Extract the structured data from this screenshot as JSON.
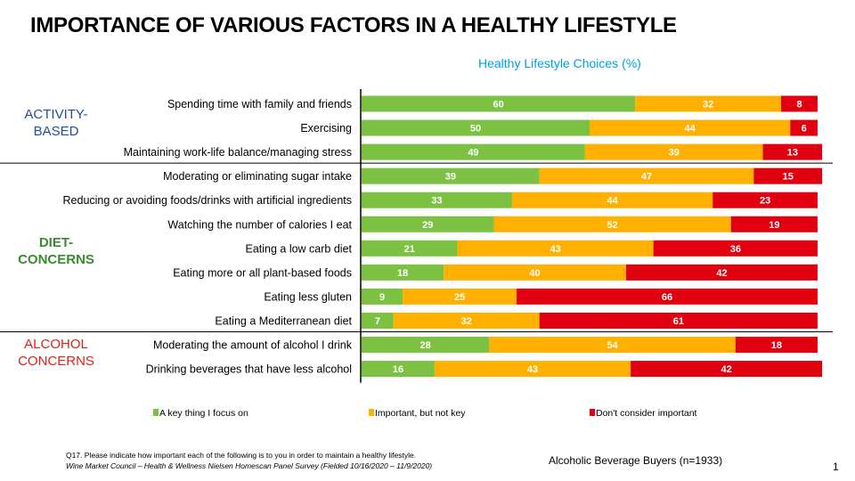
{
  "title": "IMPORTANCE OF VARIOUS FACTORS IN A HEALTHY LIFESTYLE",
  "groups": [
    {
      "label_line1": "ACTIVITY-",
      "label_line2": "BASED",
      "color": "#1f4e9e"
    },
    {
      "label_line1": "DIET-",
      "label_line2": "CONCERNS",
      "color": "#3a8a2e"
    },
    {
      "label_line1": "ALCOHOL",
      "label_line2": "CONCERNS",
      "color": "#e0201a"
    }
  ],
  "footnote": {
    "question": "Q17. Please indicate how important each of the following is to you in order to maintain a healthy lifestyle.",
    "source": "Wine Market Council – Health & Wellness Nielsen Homescan Panel Survey (Fielded 10/16/2020 – 11/9/2020)"
  },
  "base_note": "Alcoholic Beverage Buyers (n=1933)",
  "page_number": "1",
  "chart_data": {
    "type": "bar",
    "orientation": "horizontal",
    "stacked": true,
    "title": "Healthy Lifestyle Choices (%)",
    "xlim": [
      0,
      100
    ],
    "categories": [
      "Spending time with family and friends",
      "Exercising",
      "Maintaining work-life balance/managing stress",
      "Moderating or eliminating sugar intake",
      "Reducing or avoiding foods/drinks with artificial ingredients",
      "Watching the number of calories I eat",
      "Eating a low carb diet",
      "Eating more or all plant-based foods",
      "Eating less gluten",
      "Eating a Mediterranean diet",
      "Moderating the amount of alcohol I drink",
      "Drinking beverages that have less alcohol"
    ],
    "series": [
      {
        "name": "A key thing I focus on",
        "color": "#7cc142",
        "values": [
          60,
          50,
          49,
          39,
          33,
          29,
          21,
          18,
          9,
          7,
          28,
          16
        ]
      },
      {
        "name": "Important, but not key",
        "color": "#ffb000",
        "values": [
          32,
          44,
          39,
          47,
          44,
          52,
          43,
          40,
          25,
          32,
          54,
          43
        ]
      },
      {
        "name": "Don't consider important",
        "color": "#e0000f",
        "values": [
          8,
          6,
          13,
          15,
          23,
          19,
          36,
          42,
          66,
          61,
          18,
          42
        ]
      }
    ],
    "legend_position": "bottom",
    "grid": false
  }
}
